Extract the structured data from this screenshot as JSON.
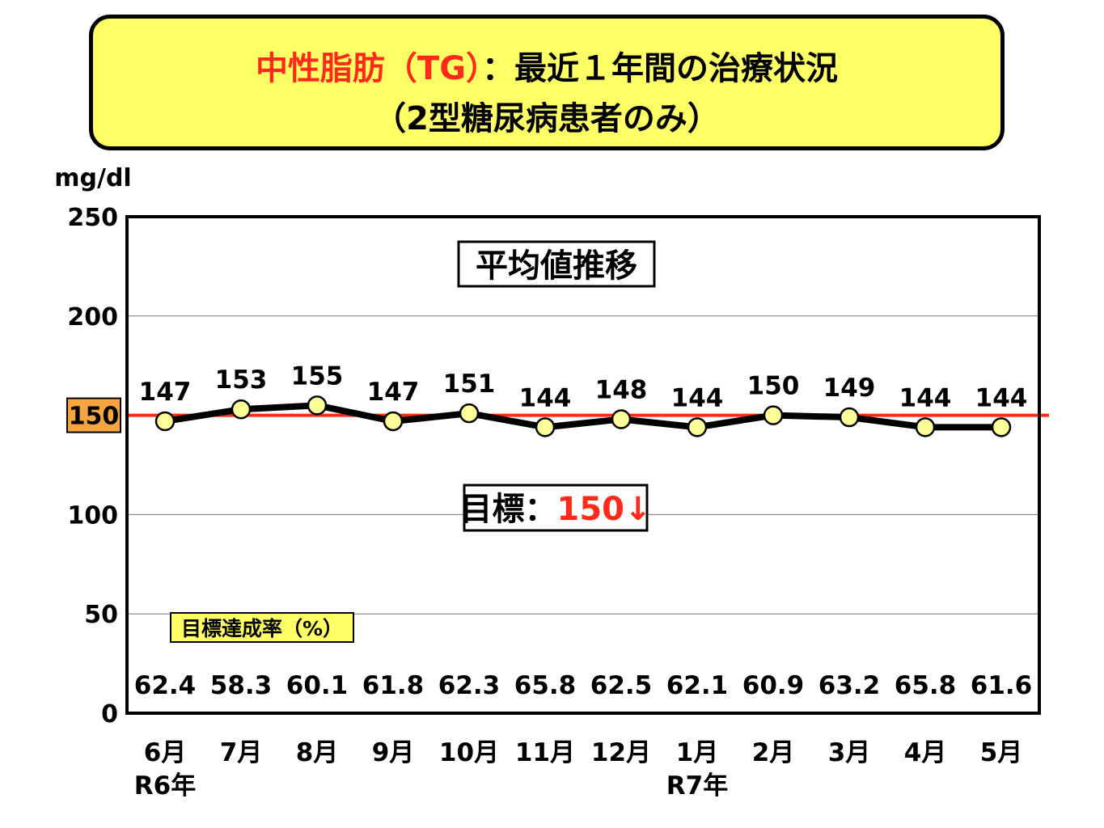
{
  "title": {
    "part_red": "中性脂肪（TG）",
    "part_black": "：最近１年間の治療状況",
    "line2": "（2型糖尿病患者のみ）"
  },
  "chart_data": {
    "type": "line",
    "y_unit": "mg/dl",
    "ylim": [
      0,
      250
    ],
    "y_ticks": [
      0,
      50,
      100,
      150,
      200,
      250
    ],
    "grid": true,
    "categories": [
      "6月",
      "7月",
      "8月",
      "9月",
      "10月",
      "11月",
      "12月",
      "1月",
      "2月",
      "3月",
      "4月",
      "5月"
    ],
    "year_labels": [
      {
        "index": 0,
        "text": "R6年"
      },
      {
        "index": 7,
        "text": "R7年"
      }
    ],
    "series": [
      {
        "values": [
          147,
          153,
          155,
          147,
          151,
          144,
          148,
          144,
          150,
          149,
          144,
          144
        ]
      }
    ],
    "target": {
      "value": 150,
      "axis_label": "150",
      "color": "#ff2a1a"
    },
    "annotation_box": {
      "text": "平均値推移"
    },
    "target_box": {
      "prefix": "目標：",
      "value_text": "150↓"
    },
    "rate": {
      "label": "目標達成率（%）",
      "values": [
        "62.4",
        "58.3",
        "60.1",
        "61.8",
        "62.3",
        "65.8",
        "62.5",
        "62.1",
        "60.9",
        "63.2",
        "65.8",
        "61.6"
      ]
    },
    "colors": {
      "line": "#000000",
      "marker_fill": "#ffff99",
      "target_line": "#ff2a1a",
      "target_label_bg": "#f7a541",
      "rate_label_bg": "#ffff66",
      "title_bg": "#ffff66"
    }
  }
}
